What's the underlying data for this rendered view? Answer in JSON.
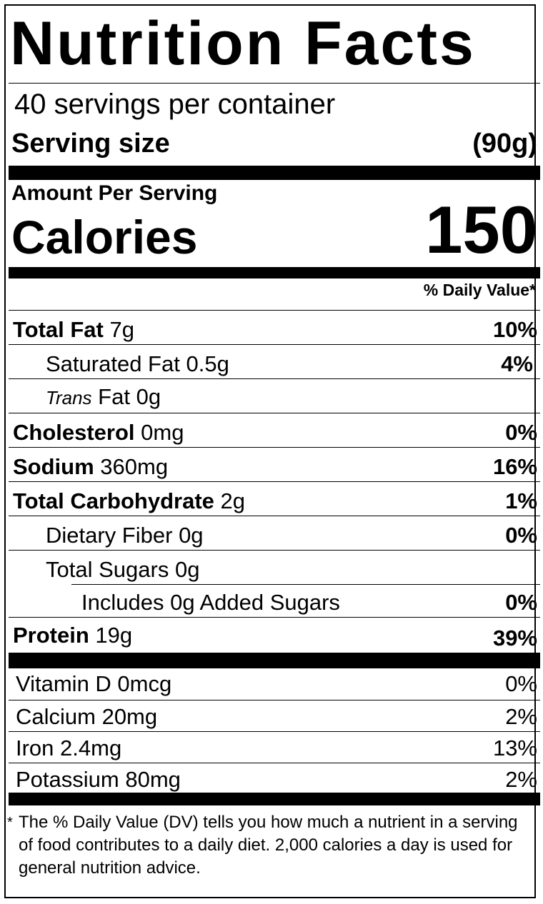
{
  "title": "Nutrition Facts",
  "servings_per_container": "40 servings per container",
  "serving_size_label": "Serving size",
  "serving_size_value": "(90g)",
  "amount_per_serving": "Amount Per Serving",
  "calories_label": "Calories",
  "calories_value": "150",
  "daily_value_header": "% Daily Value*",
  "nutrients": [
    {
      "name": "Total Fat",
      "amount": "7g",
      "dv": "10%"
    },
    {
      "name": "Saturated Fat",
      "amount": "0.5g",
      "dv": "4%"
    },
    {
      "name_italic": "Trans",
      "name": "Fat",
      "amount": "0g",
      "dv": ""
    },
    {
      "name": "Cholesterol",
      "amount": "0mg",
      "dv": "0%"
    },
    {
      "name": "Sodium",
      "amount": "360mg",
      "dv": "16%"
    },
    {
      "name": "Total Carbohydrate",
      "amount": "2g",
      "dv": "1%"
    },
    {
      "name": "Dietary Fiber",
      "amount": "0g",
      "dv": "0%"
    },
    {
      "name": "Total Sugars",
      "amount": "0g",
      "dv": ""
    },
    {
      "text": "Includes 0g Added Sugars",
      "dv": "0%"
    },
    {
      "name": "Protein",
      "amount": "19g",
      "dv": "39%"
    }
  ],
  "vitamins": [
    {
      "text": "Vitamin D 0mcg",
      "dv": "0%"
    },
    {
      "text": "Calcium 20mg",
      "dv": "2%"
    },
    {
      "text": "Iron 2.4mg",
      "dv": "13%"
    },
    {
      "text": "Potassium 80mg",
      "dv": "2%"
    }
  ],
  "footnote_marker": "*",
  "footnote": "The % Daily Value (DV) tells you how much a nutrient in a serving of food contributes to a daily diet. 2,000 calories a day is used for general nutrition advice."
}
